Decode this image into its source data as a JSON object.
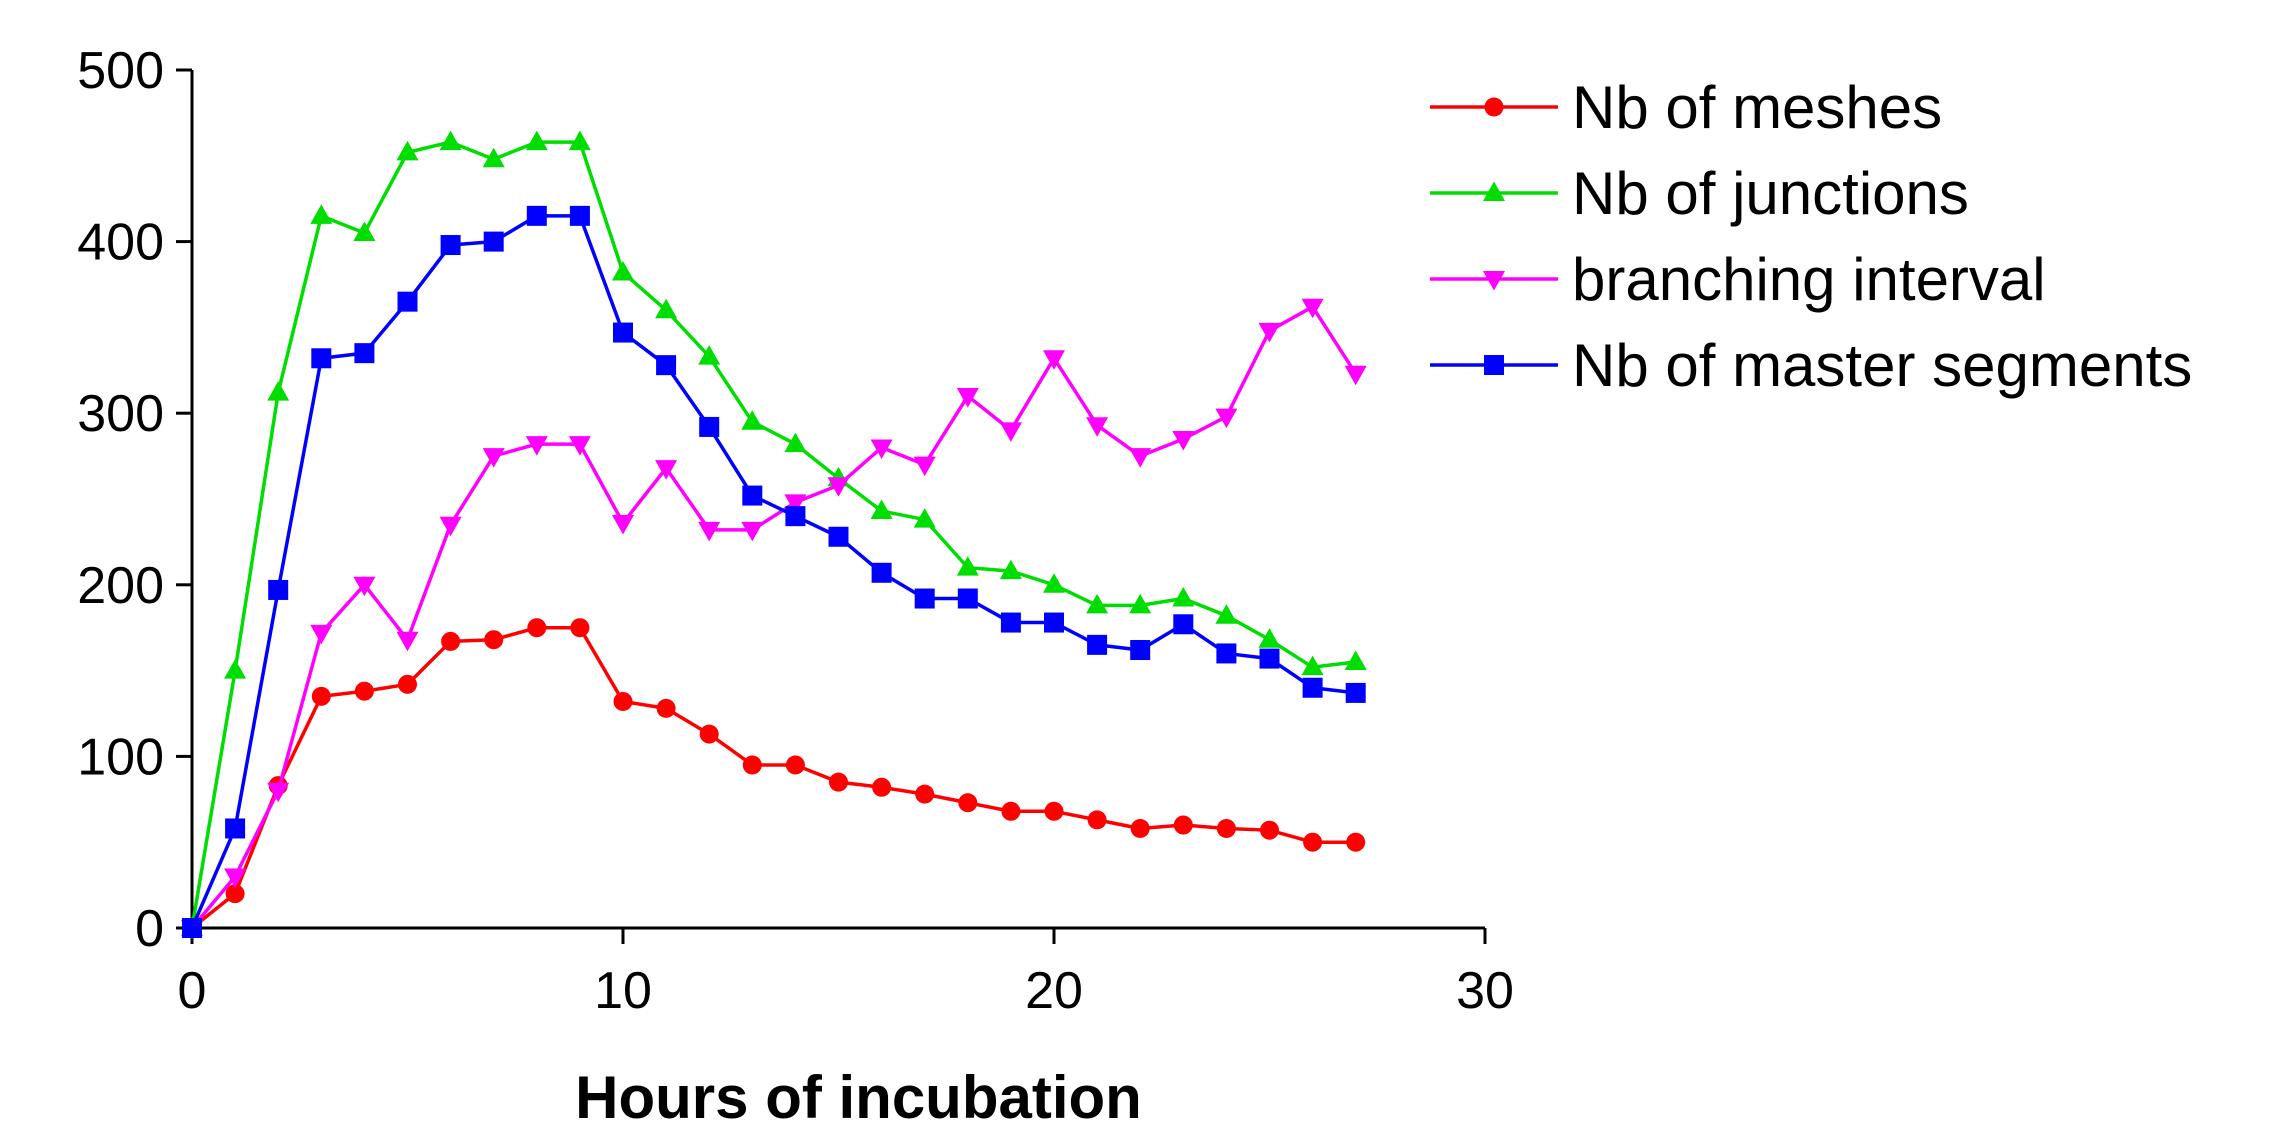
{
  "chart_data": {
    "type": "line",
    "title": "",
    "xlabel": "Hours of incubation",
    "ylabel": "",
    "xlim": [
      0,
      30
    ],
    "ylim": [
      0,
      500
    ],
    "xticks": [
      0,
      10,
      20,
      30
    ],
    "yticks": [
      0,
      100,
      200,
      300,
      400,
      500
    ],
    "grid": false,
    "legend_position": "right",
    "x": [
      0,
      1,
      2,
      3,
      4,
      5,
      6,
      7,
      8,
      9,
      10,
      11,
      12,
      13,
      14,
      15,
      16,
      17,
      18,
      19,
      20,
      21,
      22,
      23,
      24,
      25,
      26,
      27
    ],
    "series": [
      {
        "name": "Nb of meshes",
        "color": "#ff0000",
        "marker": "circle",
        "values": [
          0,
          20,
          83,
          135,
          138,
          142,
          167,
          168,
          175,
          175,
          132,
          128,
          113,
          95,
          95,
          85,
          82,
          78,
          73,
          68,
          68,
          63,
          58,
          60,
          58,
          57,
          50,
          50
        ]
      },
      {
        "name": "Nb of junctions",
        "color": "#00dd00",
        "marker": "triangle-up",
        "values": [
          0,
          150,
          312,
          415,
          405,
          452,
          458,
          448,
          458,
          458,
          382,
          360,
          333,
          295,
          282,
          262,
          243,
          238,
          210,
          208,
          200,
          188,
          188,
          192,
          182,
          168,
          152,
          155
        ]
      },
      {
        "name": "branching interval",
        "color": "#ff00ff",
        "marker": "triangle-down",
        "values": [
          0,
          30,
          80,
          172,
          200,
          168,
          235,
          275,
          282,
          282,
          236,
          268,
          232,
          232,
          248,
          258,
          280,
          270,
          310,
          290,
          332,
          293,
          275,
          285,
          298,
          348,
          362,
          323
        ]
      },
      {
        "name": "Nb of master segments",
        "color": "#0000ff",
        "marker": "square",
        "values": [
          0,
          58,
          197,
          332,
          335,
          365,
          398,
          400,
          415,
          415,
          347,
          328,
          292,
          252,
          240,
          228,
          207,
          192,
          192,
          178,
          178,
          165,
          162,
          177,
          160,
          157,
          140,
          137
        ]
      }
    ]
  }
}
